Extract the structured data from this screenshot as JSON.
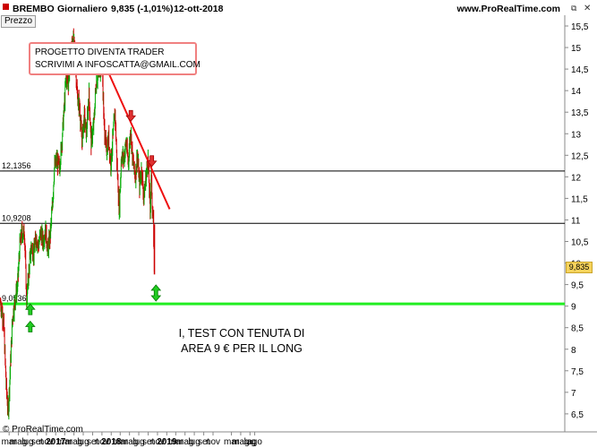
{
  "header": {
    "symbol": "BREMBO",
    "period": "Giornaliero",
    "price_change": "9,835 (-1,01%)",
    "date": "12-ott-2018",
    "site": "www.ProRealTime.com",
    "panel_label": "Prezzo"
  },
  "footer": {
    "copyright": "© ProRealTime.com"
  },
  "note": {
    "line1": "PROGETTO DIVENTA TRADER",
    "line2": "SCRIVIMI A INFOSCATTA@GMAIL.COM"
  },
  "comment": {
    "line1": "I, TEST CON TENUTA DI",
    "line2": "AREA 9 € PER IL LONG"
  },
  "colors": {
    "up": "#00aa00",
    "down": "#cc0000",
    "support": "#22ee22",
    "trendline": "#ee1111",
    "price_tag": "#f6d35c"
  },
  "chart_data": {
    "type": "line",
    "title": "BREMBO Giornaliero",
    "ylabel": "Prezzo",
    "ylim": [
      6.2,
      15.6
    ],
    "y_ticks": [
      "6,5",
      "7",
      "7,5",
      "8",
      "8,5",
      "9",
      "9,5",
      "10",
      "10,5",
      "11",
      "11,5",
      "12",
      "12,5",
      "13",
      "13,5",
      "14",
      "14,5",
      "15",
      "15,5"
    ],
    "x_ticks": [
      "mar",
      "mag",
      "lug",
      "set",
      "nov",
      "2017",
      "mar",
      "mag",
      "lug",
      "set",
      "nov",
      "2018",
      "mar",
      "mag",
      "lug",
      "set",
      "nov",
      "2019",
      "mar",
      "mag",
      "lug",
      "set",
      "nov",
      "mar",
      "mag",
      "lug",
      "ago"
    ],
    "x_tick_dates": [
      "2016-03",
      "2016-05",
      "2016-07",
      "2016-09",
      "2016-11",
      "2017-01",
      "2017-03",
      "2017-05",
      "2017-07",
      "2017-09",
      "2017-11",
      "2018-01",
      "2018-03",
      "2018-05",
      "2018-07",
      "2018-09",
      "2018-11",
      "2019-01",
      "2019-03",
      "2019-05",
      "2019-07",
      "2019-09",
      "2019-11",
      "2020-03",
      "2020-05",
      "2020-07",
      "2020-08"
    ],
    "series": [
      {
        "values": [
          [
            "2016-01-04",
            9.1
          ],
          [
            "2016-01-25",
            8.6
          ],
          [
            "2016-02-10",
            7.2
          ],
          [
            "2016-02-24",
            6.5
          ],
          [
            "2016-03-10",
            7.7
          ],
          [
            "2016-03-25",
            8.8
          ],
          [
            "2016-04-12",
            9.2
          ],
          [
            "2016-04-26",
            9.5
          ],
          [
            "2016-05-10",
            10.4
          ],
          [
            "2016-05-24",
            10.7
          ],
          [
            "2016-06-10",
            10.7
          ],
          [
            "2016-06-24",
            9.1
          ],
          [
            "2016-07-08",
            9.8
          ],
          [
            "2016-07-25",
            10.4
          ],
          [
            "2016-08-10",
            10.2
          ],
          [
            "2016-08-25",
            10.6
          ],
          [
            "2016-09-10",
            10.4
          ],
          [
            "2016-09-25",
            10.7
          ],
          [
            "2016-10-10",
            10.5
          ],
          [
            "2016-10-25",
            10.8
          ],
          [
            "2016-11-10",
            10.3
          ],
          [
            "2016-11-25",
            10.6
          ],
          [
            "2016-12-10",
            11.3
          ],
          [
            "2016-12-23",
            12.2
          ],
          [
            "2017-01-10",
            12.4
          ],
          [
            "2017-01-25",
            12.2
          ],
          [
            "2017-02-10",
            12.8
          ],
          [
            "2017-02-24",
            13.5
          ],
          [
            "2017-03-10",
            14.3
          ],
          [
            "2017-03-25",
            14.2
          ],
          [
            "2017-04-10",
            14.9
          ],
          [
            "2017-04-25",
            15.2
          ],
          [
            "2017-05-08",
            14.9
          ],
          [
            "2017-05-22",
            13.9
          ],
          [
            "2017-06-08",
            13.6
          ],
          [
            "2017-06-22",
            12.8
          ],
          [
            "2017-07-08",
            13.4
          ],
          [
            "2017-07-22",
            13.0
          ],
          [
            "2017-08-08",
            13.9
          ],
          [
            "2017-08-22",
            12.8
          ],
          [
            "2017-09-08",
            13.2
          ],
          [
            "2017-09-22",
            14.1
          ],
          [
            "2017-10-06",
            14.4
          ],
          [
            "2017-10-20",
            14.5
          ],
          [
            "2017-11-02",
            14.7
          ],
          [
            "2017-11-15",
            13.2
          ],
          [
            "2017-11-30",
            12.6
          ],
          [
            "2017-12-15",
            12.9
          ],
          [
            "2017-12-29",
            12.3
          ],
          [
            "2018-01-12",
            12.9
          ],
          [
            "2018-01-26",
            13.5
          ],
          [
            "2018-02-09",
            12.2
          ],
          [
            "2018-02-23",
            11.2
          ],
          [
            "2018-03-09",
            12.5
          ],
          [
            "2018-03-23",
            12.4
          ],
          [
            "2018-04-09",
            12.8
          ],
          [
            "2018-04-23",
            12.3
          ],
          [
            "2018-05-08",
            13.1
          ],
          [
            "2018-05-22",
            12.4
          ],
          [
            "2018-06-08",
            12.0
          ],
          [
            "2018-06-22",
            12.5
          ],
          [
            "2018-07-06",
            11.8
          ],
          [
            "2018-07-20",
            12.2
          ],
          [
            "2018-08-03",
            11.5
          ],
          [
            "2018-08-17",
            12.0
          ],
          [
            "2018-08-31",
            12.4
          ],
          [
            "2018-09-14",
            11.2
          ],
          [
            "2018-09-21",
            12.1
          ],
          [
            "2018-09-28",
            11.3
          ],
          [
            "2018-10-05",
            10.9
          ],
          [
            "2018-10-12",
            9.835
          ]
        ]
      }
    ],
    "horizontal_lines": [
      {
        "label": "12,1356",
        "value": 12.1356
      },
      {
        "label": "10,9208",
        "value": 10.9208
      },
      {
        "label": "9,0536",
        "value": 9.0536
      }
    ],
    "trendline": {
      "from": [
        "2017-11-02",
        14.75
      ],
      "to": [
        "2019-01-20",
        11.25
      ]
    },
    "markers": [
      {
        "type": "down-arrow",
        "x": "2017-11-02",
        "y": 14.75
      },
      {
        "type": "down-arrow",
        "x": "2018-05-10",
        "y": 13.25
      },
      {
        "type": "down-arrow",
        "x": "2018-09-25",
        "y": 12.2
      },
      {
        "type": "up-arrow",
        "x": "2016-07-18",
        "y": 8.65
      },
      {
        "type": "up-arrow",
        "x": "2016-07-18",
        "y": 9.05
      },
      {
        "type": "double-arrow",
        "x": "2018-10-22",
        "y": 9.2
      }
    ],
    "last_value": "9,835",
    "grid": false
  }
}
